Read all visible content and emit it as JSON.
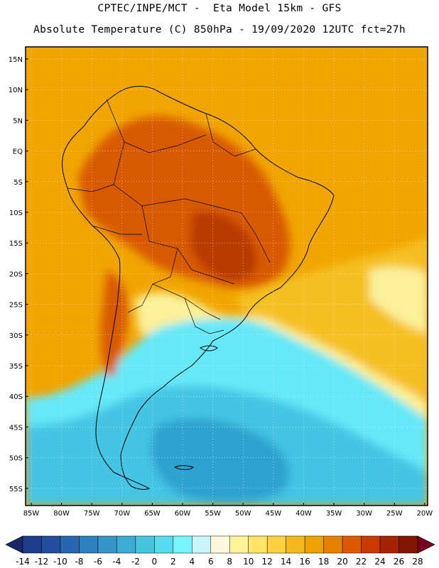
{
  "header": {
    "line1": "CPTEC/INPE/MCT -  Eta Model 15km - GFS",
    "line2": "Absolute Temperature (C) 850hPa - 19/09/2020 12UTC fct=27h"
  },
  "map": {
    "lat_labels": [
      "15N",
      "10N",
      "5N",
      "EQ",
      "5S",
      "10S",
      "15S",
      "20S",
      "25S",
      "30S",
      "35S",
      "40S",
      "45S",
      "50S",
      "55S"
    ],
    "lon_labels": [
      "85W",
      "80W",
      "75W",
      "70W",
      "65W",
      "60W",
      "55W",
      "50W",
      "45W",
      "40W",
      "35W",
      "30W",
      "25W",
      "20W"
    ],
    "field_colors": {
      "warm_bg": "#f1a500",
      "hot": "#d85a00",
      "very_hot": "#b83a00",
      "mild": "#f5c020",
      "cool": "#fcf09a",
      "cyan": "#66e8f8",
      "cold": "#44c4e4",
      "colder": "#2ea2d0"
    }
  },
  "colorbar": {
    "labels": [
      "-14",
      "-12",
      "-10",
      "-8",
      "-6",
      "-4",
      "-2",
      "0",
      "2",
      "4",
      "6",
      "8",
      "10",
      "12",
      "14",
      "16",
      "18",
      "20",
      "22",
      "24",
      "26",
      "28"
    ],
    "colors": [
      "#1e3c8c",
      "#224e9e",
      "#2866ae",
      "#2e7fbe",
      "#3496c8",
      "#3cacd4",
      "#46c4de",
      "#56dcec",
      "#78f4fc",
      "#c8f6fc",
      "#fff8dc",
      "#fff49a",
      "#ffe466",
      "#fcd040",
      "#f4b81c",
      "#eea200",
      "#e68000",
      "#de5800",
      "#c83a00",
      "#a82400",
      "#821400"
    ],
    "left_arrow_color": "#182866",
    "right_arrow_color": "#780020"
  }
}
